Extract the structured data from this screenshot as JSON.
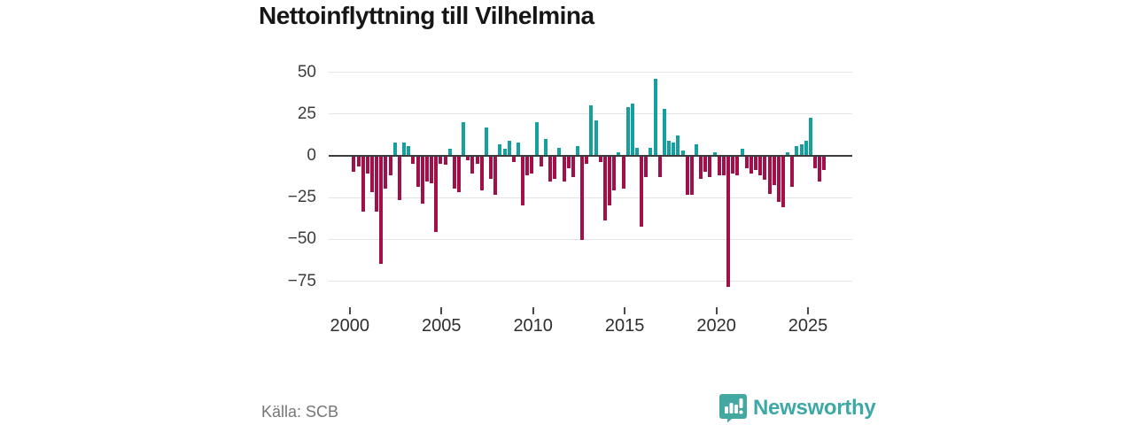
{
  "title": "Nettoinflyttning till Vilhelmina",
  "source": "Källa: SCB",
  "brand": {
    "name": "Newsworthy",
    "color": "#3da8a4",
    "logo_icon": "bar-chart-pin-icon"
  },
  "colors": {
    "positive_bar": "#13a09e",
    "negative_bar": "#a30f49",
    "gridline": "#e4e4e4",
    "zero_line": "#3b3b3b",
    "title_text": "#161616"
  },
  "chart_data": {
    "type": "bar",
    "title": "Nettoinflyttning till Vilhelmina",
    "xlabel": "",
    "ylabel": "",
    "frequency": "quarterly",
    "start_period": "2000-Q1",
    "end_period": "2025-Q4",
    "grid": true,
    "yticks": [
      50,
      25,
      0,
      -25,
      -50,
      -75
    ],
    "xticks": [
      2000,
      2005,
      2010,
      2015,
      2020,
      2025
    ],
    "ylim": [
      -85,
      55
    ],
    "series": [
      {
        "name": "Nettoinflyttning",
        "values": [
          -9,
          -6,
          -33,
          -10,
          -21,
          -33,
          -64,
          -19,
          -11,
          8,
          -26,
          8,
          6,
          -4,
          -18,
          -28,
          -15,
          -16,
          -45,
          -4,
          -5,
          4,
          -19,
          -21,
          20,
          -2,
          -10,
          -4,
          -20,
          17,
          -13,
          -23,
          7,
          4,
          9,
          -3,
          8,
          -29,
          -11,
          -10,
          20,
          -6,
          10,
          -15,
          -13,
          5,
          -15,
          -7,
          -12,
          6,
          -50,
          -4,
          30,
          21,
          -3,
          -38,
          -29,
          -20,
          2,
          -19,
          29,
          31,
          5,
          -42,
          -12,
          5,
          46,
          -12,
          28,
          9,
          8,
          12,
          3,
          -23,
          -23,
          7,
          -13,
          -9,
          -12,
          2,
          -11,
          -11,
          -78,
          -10,
          -11,
          4,
          -7,
          -10,
          -8,
          -11,
          -14,
          -22,
          -17,
          -27,
          -30,
          2,
          -18,
          6,
          7,
          9,
          23,
          -7,
          -15,
          -8
        ]
      }
    ]
  }
}
